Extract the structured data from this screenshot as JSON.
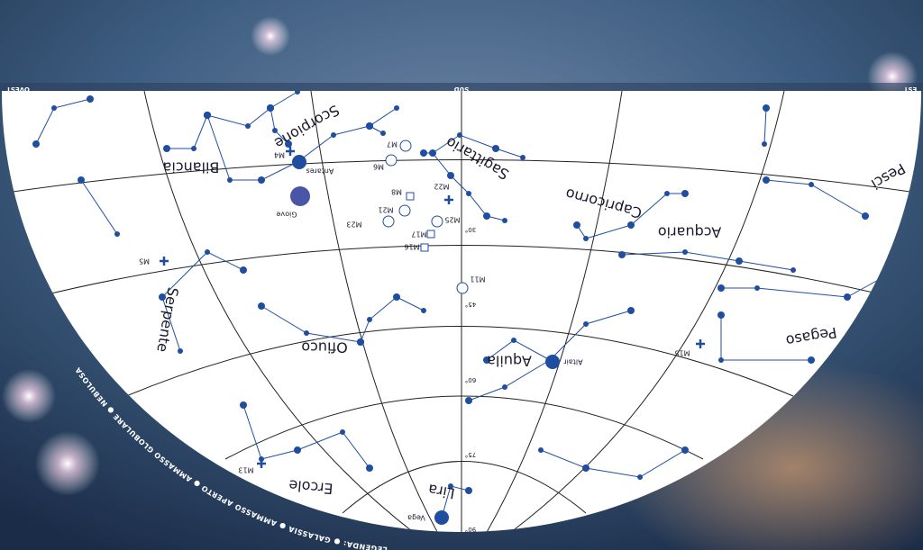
{
  "directions": {
    "west": "OVEST",
    "south": "SUD",
    "east": "EST"
  },
  "constellations": [
    "Scorpione",
    "Bilancia",
    "Sagittario",
    "Capricorno",
    "Acquario",
    "Pesci",
    "Pegaso",
    "Aquila",
    "Ofiuco",
    "Serpente",
    "Ercole",
    "Lira"
  ],
  "objects": [
    "M4",
    "M7",
    "M6",
    "M8",
    "M22",
    "M21",
    "M23",
    "M25",
    "M17",
    "M16",
    "M11",
    "M5",
    "M15",
    "M13"
  ],
  "stars": [
    "Antares",
    "Giove",
    "Altair",
    "Vega"
  ],
  "altitudes": [
    "30°",
    "45°",
    "60°",
    "75°",
    "90°"
  ],
  "legend": {
    "title": "LEGENDA:",
    "items": [
      "GALASSIA",
      "AMMASSO APERTO",
      "AMMASSO GLOBULARE",
      "NEBULOSA"
    ]
  }
}
